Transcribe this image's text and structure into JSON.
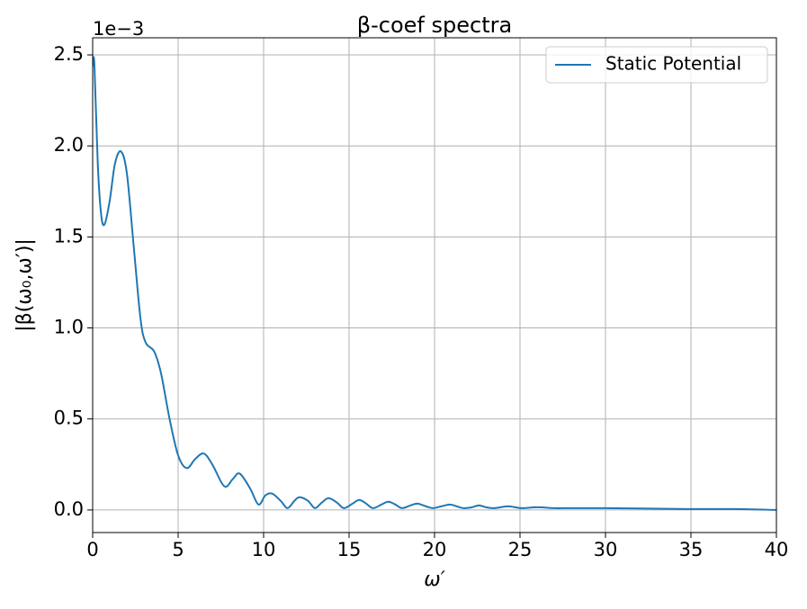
{
  "chart_data": {
    "type": "line",
    "title": "β-coef spectra",
    "xlabel": "ω′",
    "ylabel": "|β(ω₀,ω′)|",
    "y_offset_label": "1e−3",
    "x": [
      0,
      0.1,
      0.3,
      0.5,
      0.7,
      1.0,
      1.3,
      1.65,
      2.0,
      2.4,
      2.8,
      3.1,
      3.6,
      4.0,
      4.5,
      5.0,
      5.5,
      6.0,
      6.5,
      7.0,
      7.7,
      8.2,
      8.6,
      9.2,
      9.7,
      10.1,
      10.5,
      11.0,
      11.4,
      11.8,
      12.1,
      12.6,
      13.0,
      13.4,
      13.8,
      14.3,
      14.7,
      15.2,
      15.6,
      16.0,
      16.4,
      16.9,
      17.3,
      17.7,
      18.1,
      18.6,
      19.0,
      19.5,
      19.9,
      20.4,
      20.9,
      21.3,
      21.7,
      22.2,
      22.6,
      23.0,
      23.5,
      24.3,
      25.1,
      26.0,
      27,
      28,
      30,
      32,
      35,
      37.5,
      40
    ],
    "series": [
      {
        "name": "Static Potential",
        "color": "#1f77b4",
        "values": [
          2.44,
          2.45,
          1.9,
          1.62,
          1.57,
          1.7,
          1.9,
          1.97,
          1.85,
          1.45,
          1.05,
          0.92,
          0.87,
          0.75,
          0.5,
          0.3,
          0.23,
          0.28,
          0.31,
          0.25,
          0.13,
          0.17,
          0.2,
          0.12,
          0.03,
          0.08,
          0.09,
          0.05,
          0.01,
          0.05,
          0.07,
          0.05,
          0.01,
          0.04,
          0.065,
          0.04,
          0.01,
          0.035,
          0.055,
          0.035,
          0.01,
          0.03,
          0.045,
          0.03,
          0.01,
          0.025,
          0.035,
          0.02,
          0.01,
          0.02,
          0.03,
          0.02,
          0.01,
          0.015,
          0.025,
          0.015,
          0.01,
          0.02,
          0.01,
          0.015,
          0.01,
          0.01,
          0.01,
          0.008,
          0.005,
          0.005,
          0.0
        ]
      }
    ],
    "xlim": [
      0,
      40
    ],
    "xticks": [
      0,
      5,
      10,
      15,
      20,
      25,
      30,
      35,
      40
    ],
    "ylim": [
      -0.124,
      2.594
    ],
    "yticks": [
      {
        "value": 0,
        "label": "0.0"
      },
      0.5,
      {
        "value": 1,
        "label": "1.0"
      },
      1.5,
      {
        "value": 2,
        "label": "2.0"
      },
      2.5
    ],
    "grid": true,
    "legend": "upper right"
  }
}
